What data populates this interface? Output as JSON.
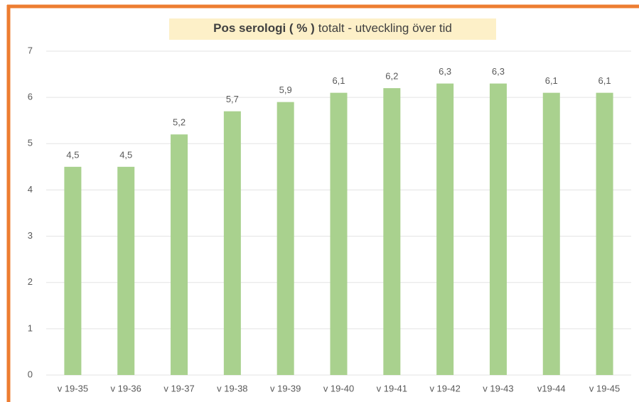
{
  "chart_data": {
    "type": "bar",
    "title": [
      "Pos serologi ( % )",
      "totalt - utveckling över tid"
    ],
    "categories": [
      "v 19-35",
      "v 19-36",
      "v 19-37",
      "v 19-38",
      "v 19-39",
      "v 19-40",
      "v 19-41",
      "v 19-42",
      "v 19-43",
      "v19-44",
      "v 19-45"
    ],
    "values": [
      4.5,
      4.5,
      5.2,
      5.7,
      5.9,
      6.1,
      6.2,
      6.3,
      6.3,
      6.1,
      6.1
    ],
    "value_labels": [
      "4,5",
      "4,5",
      "5,2",
      "5,7",
      "5,9",
      "6,1",
      "6,2",
      "6,3",
      "6,3",
      "6,1",
      "6,1"
    ],
    "color": "#a9d18e",
    "ylim": [
      0,
      7
    ],
    "yticks": [
      0,
      1,
      2,
      3,
      4,
      5,
      6,
      7
    ],
    "grid": true
  }
}
